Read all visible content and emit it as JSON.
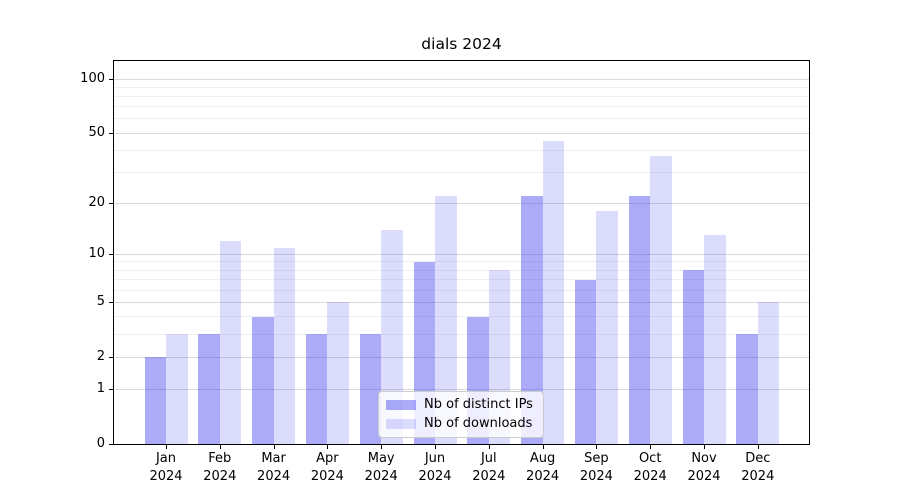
{
  "page": {
    "background": "#ffffff"
  },
  "chart_data": {
    "type": "bar",
    "title": "dials 2024",
    "categories": [
      "Jan",
      "Feb",
      "Mar",
      "Apr",
      "May",
      "Jun",
      "Jul",
      "Aug",
      "Sep",
      "Oct",
      "Nov",
      "Dec"
    ],
    "category_year": "2024",
    "series": [
      {
        "name": "Nb of distinct IPs",
        "values": [
          2,
          3,
          4,
          3,
          3,
          9,
          4,
          22,
          7,
          22,
          8,
          3
        ],
        "fill": "rgba(68,68,240,0.45)",
        "hex_on_white": "#ababf8"
      },
      {
        "name": "Nb of downloads",
        "values": [
          3,
          12,
          11,
          5,
          14,
          22,
          8,
          45,
          18,
          37,
          13,
          5
        ],
        "fill": "rgba(68,68,240,0.19)",
        "hex_on_white": "#dfdffc"
      }
    ],
    "yscale": "log1p",
    "ylim": [
      0,
      126
    ],
    "y_major_ticks": [
      0,
      1,
      2,
      5,
      10,
      20,
      50,
      100
    ],
    "y_minor_gridlines": [
      3,
      4,
      6,
      7,
      8,
      9,
      30,
      40,
      60,
      70,
      80,
      90
    ],
    "xlabel": "",
    "ylabel": "",
    "grid": "horizontal",
    "legend": {
      "position": "inside-bottom-center",
      "entries": [
        "Nb of distinct IPs",
        "Nb of downloads"
      ]
    }
  },
  "colors": {
    "major_grid": "#d9d9d9",
    "minor_grid": "#efefef",
    "axis": "#000000",
    "text": "#000000",
    "legend_border": "#cccccc",
    "legend_bg": "rgba(255,255,255,0.8)"
  }
}
